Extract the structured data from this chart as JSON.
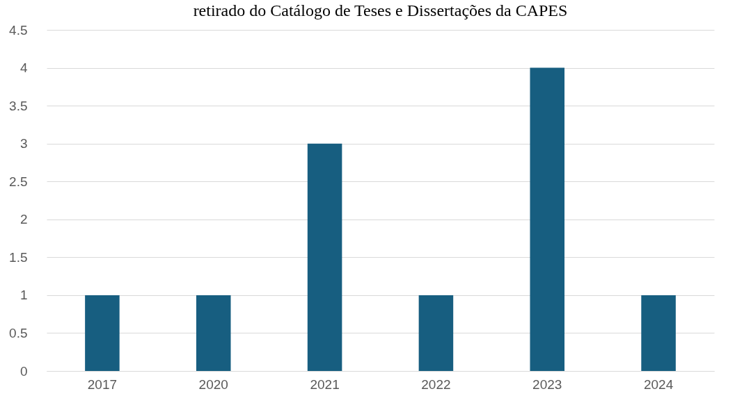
{
  "chart_data": {
    "type": "bar",
    "title": "retirado do Catálogo de Teses e Dissertações da CAPES",
    "categories": [
      "2017",
      "2020",
      "2021",
      "2022",
      "2023",
      "2024"
    ],
    "values": [
      1,
      1,
      3,
      1,
      4,
      1
    ],
    "color": "#175e80",
    "ylim": [
      0,
      4.5
    ],
    "yticks": [
      0,
      0.5,
      1,
      1.5,
      2,
      2.5,
      3,
      3.5,
      4,
      4.5
    ],
    "grid": "y"
  }
}
